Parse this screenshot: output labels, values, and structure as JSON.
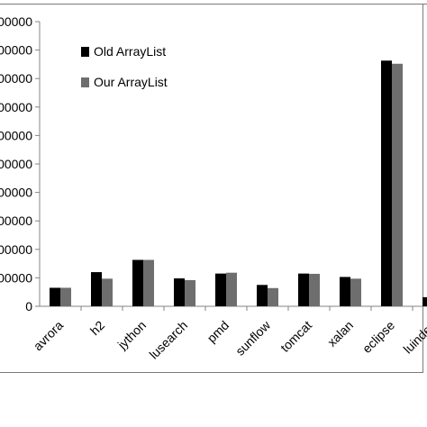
{
  "chart_data": {
    "type": "bar",
    "categories": [
      "avrora",
      "h2",
      "jython",
      "lusearch",
      "pmd",
      "sunflow",
      "tomcat",
      "xalan",
      "eclipse",
      "luindex"
    ],
    "series": [
      {
        "name": "Old ArrayList",
        "color": "#000000",
        "values": [
          65000,
          120000,
          163000,
          98000,
          115000,
          75000,
          115000,
          103000,
          863000,
          32000
        ]
      },
      {
        "name": "Our ArrayList",
        "color": "#6e6e6e",
        "values": [
          65000,
          97000,
          163000,
          92000,
          118000,
          64000,
          114000,
          97000,
          852000,
          0
        ]
      }
    ],
    "yticks": [
      "0",
      "00000",
      "00000",
      "00000",
      "00000",
      "00000",
      "00000",
      "00000",
      "00000",
      "00000",
      "00000"
    ],
    "ylim": [
      0,
      1000000
    ],
    "legend_position": "top-left",
    "grid": false
  }
}
